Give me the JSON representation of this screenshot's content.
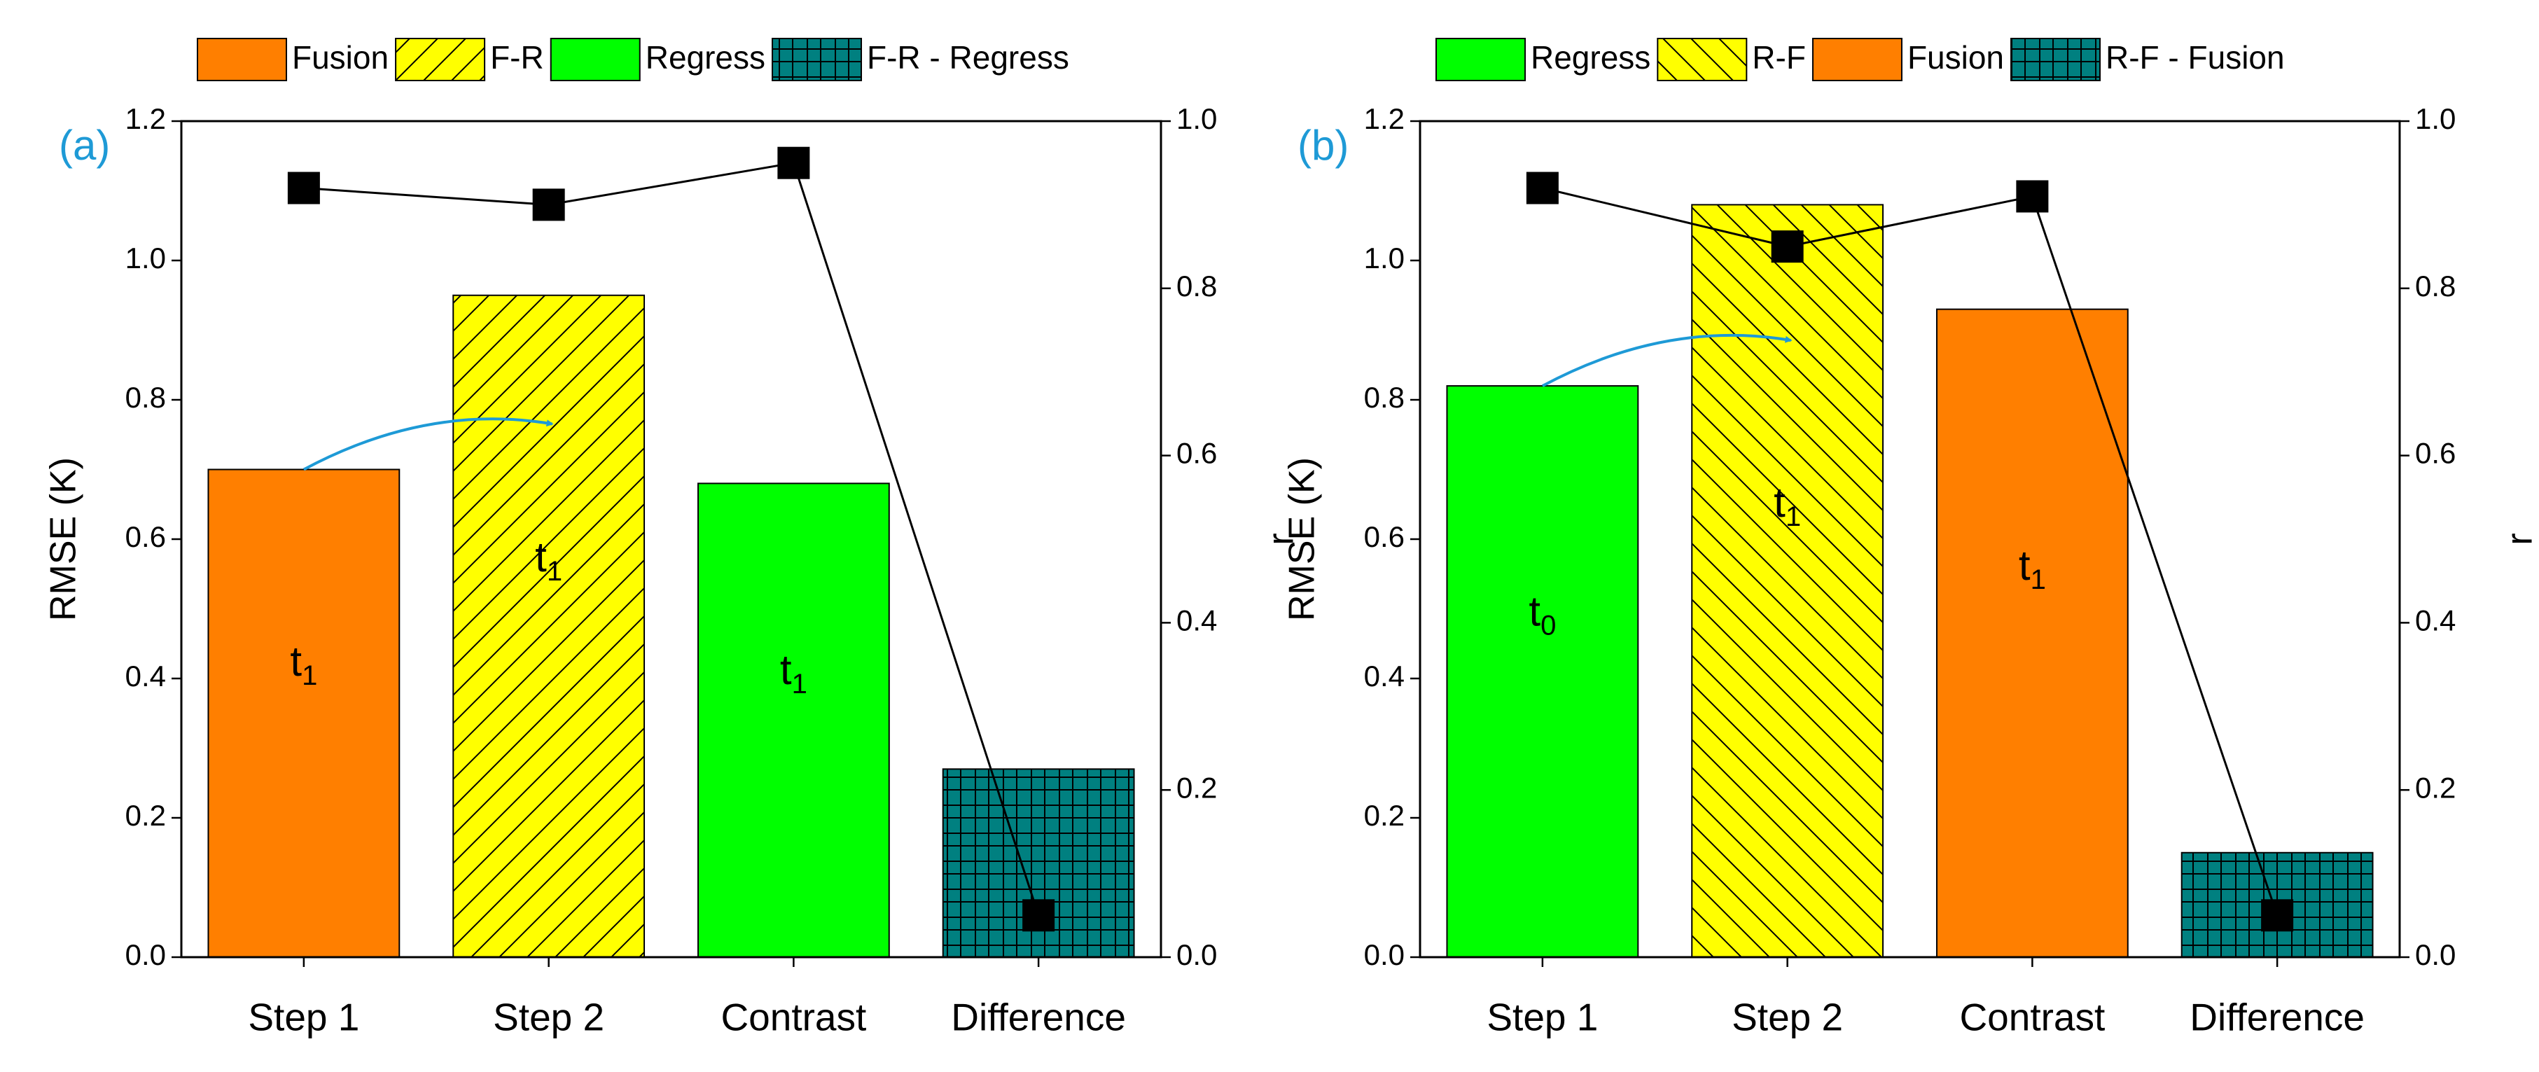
{
  "chart_data": [
    {
      "type": "bar",
      "panel": "(a)",
      "ylabel": "RMSE (K)",
      "y2label": "r",
      "categories": [
        "Step 1",
        "Step 2",
        "Contrast",
        "Difference"
      ],
      "series": [
        {
          "name": "Fusion",
          "color": "#ff7f00",
          "values": [
            0.7,
            null,
            null,
            null
          ]
        },
        {
          "name": "F-R",
          "color": "#ffff00",
          "pattern": "/",
          "values": [
            null,
            0.95,
            null,
            null
          ]
        },
        {
          "name": "Regress",
          "color": "#00ff00",
          "values": [
            null,
            null,
            0.68,
            null
          ]
        },
        {
          "name": "F-R - Regress",
          "color": "#008080",
          "pattern": "+",
          "values": [
            null,
            null,
            null,
            0.27
          ]
        },
        {
          "type": "line",
          "axis": "y2",
          "color": "#000000",
          "values": [
            0.92,
            0.9,
            0.95,
            0.05
          ]
        }
      ],
      "annotations": [
        {
          "text": "t",
          "sub": "1"
        },
        {
          "text": "t",
          "sub": "1"
        },
        {
          "text": "t",
          "sub": "1"
        },
        null
      ],
      "ylim": [
        0,
        1.2
      ],
      "yticks": [
        {
          "value": 0,
          "label": "0.0"
        },
        0.2,
        0.4,
        0.6,
        0.8,
        {
          "value": 1,
          "label": "1.0"
        },
        1.2
      ],
      "y2lim": [
        0,
        1
      ],
      "y2ticks": [
        {
          "value": 0,
          "label": "0.0"
        },
        0.2,
        0.4,
        0.6,
        0.8,
        {
          "value": 1,
          "label": "1.0"
        }
      ]
    },
    {
      "type": "bar",
      "panel": "(b)",
      "ylabel": "RMSE (K)",
      "y2label": "r",
      "categories": [
        "Step 1",
        "Step 2",
        "Contrast",
        "Difference"
      ],
      "series": [
        {
          "name": "Regress",
          "color": "#00ff00",
          "values": [
            0.82,
            null,
            null,
            null
          ]
        },
        {
          "name": "R-F",
          "color": "#ffff00",
          "pattern": "\\",
          "values": [
            null,
            1.08,
            null,
            null
          ]
        },
        {
          "name": "Fusion",
          "color": "#ff7f00",
          "values": [
            null,
            null,
            0.93,
            null
          ]
        },
        {
          "name": "R-F - Fusion",
          "color": "#008080",
          "pattern": "+",
          "values": [
            null,
            null,
            null,
            0.15
          ]
        },
        {
          "type": "line",
          "axis": "y2",
          "color": "#000000",
          "values": [
            0.92,
            0.85,
            0.91,
            0.05
          ]
        }
      ],
      "annotations": [
        {
          "text": "t",
          "sub": "0"
        },
        {
          "text": "t",
          "sub": "1"
        },
        {
          "text": "t",
          "sub": "1"
        },
        null
      ],
      "ylim": [
        0,
        1.2
      ],
      "yticks": [
        {
          "value": 0,
          "label": "0.0"
        },
        0.2,
        0.4,
        0.6,
        0.8,
        {
          "value": 1,
          "label": "1.0"
        },
        1.2
      ],
      "y2lim": [
        0,
        1
      ],
      "y2ticks": [
        {
          "value": 0,
          "label": "0.0"
        },
        0.2,
        0.4,
        0.6,
        0.8,
        {
          "value": 1,
          "label": "1.0"
        }
      ]
    }
  ]
}
